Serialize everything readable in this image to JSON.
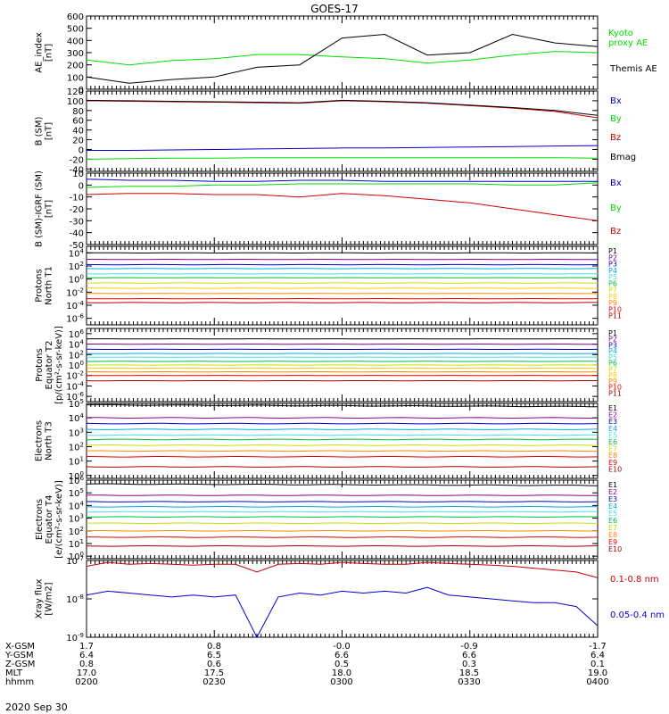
{
  "title": "GOES-17",
  "date_label": "2020 Sep 30",
  "colors": {
    "black": "#000000",
    "green": "#00dd00",
    "red": "#cc0000",
    "blue": "#0000cc"
  },
  "ephemeris": {
    "rows": [
      {
        "label": "X-GSM",
        "values": [
          "1.7",
          "0.8",
          "-0.0",
          "-0.9",
          "-1.7"
        ]
      },
      {
        "label": "Y-GSM",
        "values": [
          "6.4",
          "6.5",
          "6.6",
          "6.6",
          "6.4"
        ]
      },
      {
        "label": "Z-GSM",
        "values": [
          "0.8",
          "0.6",
          "0.5",
          "0.3",
          "0.1"
        ]
      },
      {
        "label": "MLT",
        "values": [
          "17.0",
          "17.5",
          "18.0",
          "18.5",
          "19.0"
        ]
      },
      {
        "label": "hhmm",
        "values": [
          "0200",
          "0230",
          "0300",
          "0330",
          "0400"
        ]
      }
    ]
  },
  "chart_data": [
    {
      "type": "line",
      "ylabel": [
        "AE_index",
        "[nT]"
      ],
      "ylim": [
        0,
        600
      ],
      "yticks": [
        0,
        100,
        200,
        300,
        400,
        500,
        600
      ],
      "x": [
        0,
        10,
        20,
        30,
        40,
        50,
        60,
        70,
        80,
        90,
        100,
        110,
        120
      ],
      "xlabel": "",
      "series": [
        {
          "name": "Kyoto proxy AE",
          "legend_lines": [
            "Kyoto",
            "proxy AE"
          ],
          "color": "#00dd00",
          "values": [
            240,
            200,
            235,
            250,
            285,
            285,
            265,
            250,
            215,
            240,
            280,
            310,
            300
          ]
        },
        {
          "name": "Themis AE",
          "legend_lines": [
            "Themis AE"
          ],
          "color": "#000000",
          "values": [
            100,
            50,
            80,
            100,
            180,
            200,
            420,
            450,
            280,
            300,
            450,
            380,
            350
          ]
        }
      ]
    },
    {
      "type": "line",
      "ylabel": [
        "B (SM)",
        "[nT]"
      ],
      "ylim": [
        -45,
        120
      ],
      "yticks": [
        -40,
        -20,
        0,
        20,
        40,
        60,
        80,
        100,
        120
      ],
      "x": [
        0,
        10,
        20,
        30,
        40,
        50,
        60,
        70,
        80,
        90,
        100,
        110,
        120
      ],
      "series": [
        {
          "name": "Bx",
          "legend_lines": [
            "Bx"
          ],
          "color": "#0000cc",
          "values": [
            -2,
            -2,
            -1,
            0,
            1,
            2,
            3,
            3,
            4,
            5,
            6,
            7,
            8
          ]
        },
        {
          "name": "By",
          "legend_lines": [
            "By"
          ],
          "color": "#00dd00",
          "values": [
            -20,
            -19,
            -18,
            -18,
            -17,
            -17,
            -17,
            -17,
            -17,
            -17,
            -17,
            -17,
            -18
          ]
        },
        {
          "name": "Bz",
          "legend_lines": [
            "Bz"
          ],
          "color": "#cc0000",
          "values": [
            100,
            99,
            98,
            97,
            96,
            95,
            100,
            98,
            95,
            90,
            85,
            78,
            65
          ]
        },
        {
          "name": "Bmag",
          "legend_lines": [
            "Bmag"
          ],
          "color": "#000000",
          "values": [
            101,
            100,
            99,
            98,
            97,
            96,
            101,
            99,
            96,
            91,
            86,
            80,
            70
          ]
        }
      ]
    },
    {
      "type": "line",
      "ylabel": [
        "B (SM)-IGRF (SM)",
        "[nT]"
      ],
      "ylim": [
        -50,
        10
      ],
      "yticks": [
        -50,
        -40,
        -30,
        -20,
        -10,
        0,
        10
      ],
      "x": [
        0,
        10,
        20,
        30,
        40,
        50,
        60,
        70,
        80,
        90,
        100,
        110,
        120
      ],
      "series": [
        {
          "name": "Bx",
          "legend_lines": [
            "Bx"
          ],
          "color": "#0000cc",
          "values": [
            5,
            4,
            4,
            3,
            3,
            4,
            4,
            3,
            3,
            3,
            3,
            3,
            3
          ]
        },
        {
          "name": "By",
          "legend_lines": [
            "By"
          ],
          "color": "#00dd00",
          "values": [
            -2,
            -1,
            -1,
            0,
            0,
            1,
            1,
            1,
            1,
            1,
            0,
            0,
            2
          ]
        },
        {
          "name": "Bz",
          "legend_lines": [
            "Bz"
          ],
          "color": "#cc0000",
          "values": [
            -8,
            -7,
            -7,
            -8,
            -8,
            -10,
            -7,
            -9,
            -12,
            -15,
            -20,
            -25,
            -30
          ]
        }
      ]
    },
    {
      "type": "line",
      "ylabel": [
        "Protons",
        "North T1"
      ],
      "ylog": true,
      "ylim": [
        -7,
        5
      ],
      "ytick_exps": [
        -6,
        -4,
        -2,
        0,
        2,
        4
      ],
      "levels": [
        4.0,
        3.0,
        2.2,
        1.6,
        0.8,
        0.2,
        -0.6,
        -1.4,
        -2.2,
        -3.0,
        -3.6
      ],
      "series": [
        {
          "name": "P1",
          "color": "#000000"
        },
        {
          "name": "P2",
          "color": "#880088"
        },
        {
          "name": "P3",
          "color": "#0000cc"
        },
        {
          "name": "P4",
          "color": "#00aadd"
        },
        {
          "name": "P5",
          "color": "#44ddee"
        },
        {
          "name": "P6",
          "color": "#00bb44"
        },
        {
          "name": "P7",
          "color": "#ccdd00"
        },
        {
          "name": "P8",
          "color": "#ffcc00"
        },
        {
          "name": "P9",
          "color": "#ff8800"
        },
        {
          "name": "P10",
          "color": "#ee0000"
        },
        {
          "name": "P11",
          "color": "#aa0000"
        }
      ]
    },
    {
      "type": "line",
      "ylabel": [
        "Protons",
        "Equator T2",
        "[p/(cm²-s-sr-keV)]"
      ],
      "ylog": true,
      "ylim": [
        -7,
        7
      ],
      "ytick_exps": [
        -6,
        -4,
        -2,
        0,
        2,
        4,
        6
      ],
      "levels": [
        5.0,
        4.0,
        3.0,
        2.2,
        1.5,
        0.7,
        0.0,
        -0.6,
        -1.3,
        -2.0,
        -3.0
      ],
      "series": [
        {
          "name": "P1",
          "color": "#000000"
        },
        {
          "name": "P2",
          "color": "#880088"
        },
        {
          "name": "P3",
          "color": "#0000cc"
        },
        {
          "name": "P4",
          "color": "#00aadd"
        },
        {
          "name": "P5",
          "color": "#44ddee"
        },
        {
          "name": "P6",
          "color": "#00bb44"
        },
        {
          "name": "P7",
          "color": "#ccdd00"
        },
        {
          "name": "P8",
          "color": "#ffcc00"
        },
        {
          "name": "P9",
          "color": "#ff8800"
        },
        {
          "name": "P10",
          "color": "#ee0000"
        },
        {
          "name": "P11",
          "color": "#aa0000"
        }
      ]
    },
    {
      "type": "line",
      "ylabel": [
        "Electrons",
        "North T3"
      ],
      "ylog": true,
      "ylim": [
        -0.2,
        5
      ],
      "ytick_exps": [
        0,
        1,
        2,
        3,
        4,
        5
      ],
      "levels": [
        4.9,
        4.0,
        3.6,
        3.2,
        2.8,
        2.5,
        2.1,
        1.7,
        1.3,
        0.6
      ],
      "series": [
        {
          "name": "E1",
          "color": "#000000"
        },
        {
          "name": "E2",
          "color": "#880088"
        },
        {
          "name": "E3",
          "color": "#0000cc"
        },
        {
          "name": "E4",
          "color": "#00aadd"
        },
        {
          "name": "E5",
          "color": "#44ddee"
        },
        {
          "name": "E6",
          "color": "#00bb44"
        },
        {
          "name": "E7",
          "color": "#ccdd00"
        },
        {
          "name": "E8",
          "color": "#ff8800"
        },
        {
          "name": "E9",
          "color": "#ee0000"
        },
        {
          "name": "E10",
          "color": "#aa0000"
        }
      ]
    },
    {
      "type": "line",
      "ylabel": [
        "Electrons",
        "Equator T4",
        "[e/(cm²-s-sr-keV)]"
      ],
      "ylog": true,
      "ylim": [
        -0.2,
        6
      ],
      "ytick_exps": [
        0,
        1,
        2,
        3,
        4,
        5,
        6
      ],
      "levels": [
        5.7,
        4.8,
        4.3,
        3.9,
        3.5,
        3.1,
        2.6,
        2.0,
        1.5,
        0.8
      ],
      "series": [
        {
          "name": "E1",
          "color": "#000000"
        },
        {
          "name": "E2",
          "color": "#880088"
        },
        {
          "name": "E3",
          "color": "#0000cc"
        },
        {
          "name": "E4",
          "color": "#00aadd"
        },
        {
          "name": "E5",
          "color": "#44ddee"
        },
        {
          "name": "E6",
          "color": "#00bb44"
        },
        {
          "name": "E7",
          "color": "#ccdd00"
        },
        {
          "name": "E8",
          "color": "#ff8800"
        },
        {
          "name": "E9",
          "color": "#ee0000"
        },
        {
          "name": "E10",
          "color": "#aa0000"
        }
      ]
    },
    {
      "type": "line",
      "ylabel": [
        "Xray flux",
        "[W/m2]"
      ],
      "ylog": true,
      "ylim": [
        -9,
        -7
      ],
      "ytick_exps": [
        -9,
        -8,
        -7
      ],
      "x": [
        0,
        5,
        10,
        15,
        20,
        25,
        30,
        35,
        40,
        45,
        50,
        55,
        60,
        65,
        70,
        75,
        80,
        85,
        90,
        95,
        100,
        105,
        110,
        115,
        120
      ],
      "series": [
        {
          "name": "0.1-0.8 nm",
          "color": "#cc0000",
          "values": [
            -7.15,
            -7.05,
            -7.1,
            -7.08,
            -7.1,
            -7.12,
            -7.1,
            -7.1,
            -7.3,
            -7.1,
            -7.08,
            -7.1,
            -7.05,
            -7.08,
            -7.1,
            -7.1,
            -7.05,
            -7.08,
            -7.1,
            -7.12,
            -7.15,
            -7.2,
            -7.25,
            -7.3,
            -7.45
          ]
        },
        {
          "name": "0.05-0.4 nm",
          "color": "#0000cc",
          "values": [
            -7.9,
            -7.8,
            -7.85,
            -7.9,
            -7.95,
            -7.9,
            -7.95,
            -7.9,
            -9.0,
            -7.95,
            -7.85,
            -7.9,
            -7.8,
            -7.85,
            -7.8,
            -7.85,
            -7.7,
            -7.9,
            -7.95,
            -8.0,
            -8.05,
            -8.1,
            -8.1,
            -8.2,
            -8.7
          ]
        }
      ]
    }
  ]
}
